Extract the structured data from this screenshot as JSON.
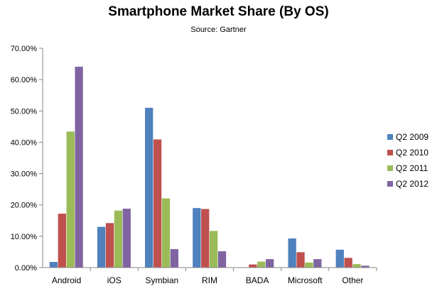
{
  "chart_data": {
    "type": "bar",
    "title": "Smartphone Market Share (By OS)",
    "subtitle": "Source: Gartner",
    "xlabel": "",
    "ylabel": "",
    "ylim": [
      0,
      70
    ],
    "yticks": [
      0,
      10,
      20,
      30,
      40,
      50,
      60,
      70
    ],
    "ytick_labels": [
      "0.00%",
      "10.00%",
      "20.00%",
      "30.00%",
      "40.00%",
      "50.00%",
      "60.00%",
      "70.00%"
    ],
    "grid": false,
    "legend_position": "right",
    "categories": [
      "Android",
      "iOS",
      "Symbian",
      "RIM",
      "BADA",
      "Microsoft",
      "Other"
    ],
    "series": [
      {
        "name": "Q2 2009",
        "color": "#4F81BD",
        "values": [
          1.8,
          13.0,
          51.0,
          19.0,
          0.0,
          9.3,
          5.7
        ]
      },
      {
        "name": "Q2 2010",
        "color": "#C0504D",
        "values": [
          17.2,
          14.2,
          40.9,
          18.7,
          1.0,
          4.9,
          3.1
        ]
      },
      {
        "name": "Q2 2011",
        "color": "#9BBB59",
        "values": [
          43.4,
          18.2,
          22.1,
          11.7,
          1.9,
          1.6,
          1.1
        ]
      },
      {
        "name": "Q2 2012",
        "color": "#8064A2",
        "values": [
          64.1,
          18.8,
          5.9,
          5.2,
          2.7,
          2.7,
          0.6
        ]
      }
    ]
  }
}
